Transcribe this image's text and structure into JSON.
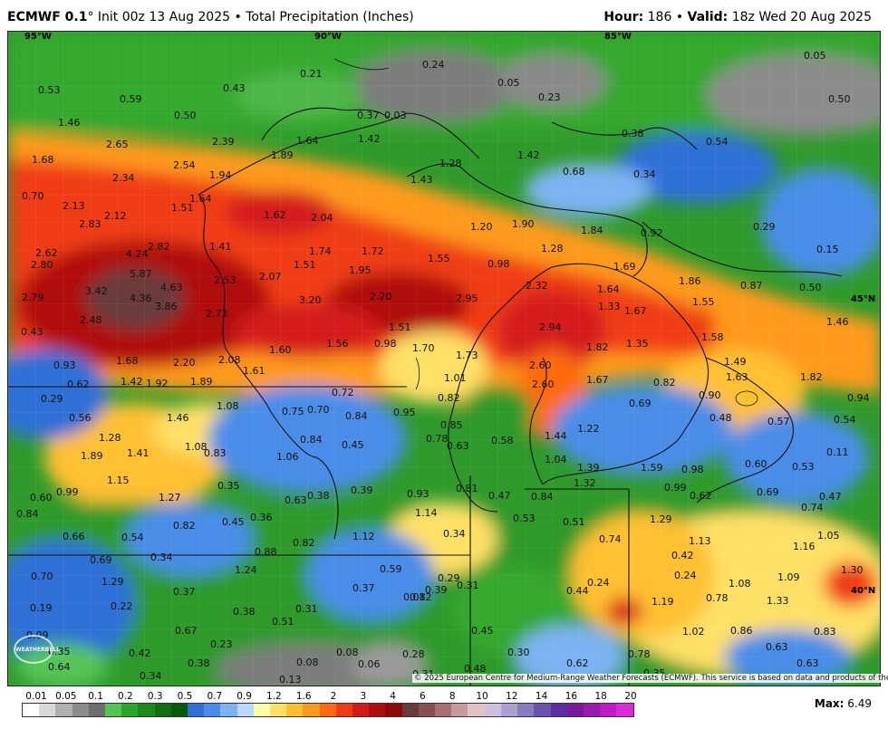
{
  "header": {
    "model": "ECMWF 0.1",
    "deg": "°",
    "init": "Init 00z 13 Aug 2025",
    "bullet": "•",
    "product": "Total Precipitation (Inches)",
    "hour_label": "Hour:",
    "hour_value": "186",
    "valid_label": "Valid:",
    "valid_value": "18z Wed 20 Aug 2025"
  },
  "map": {
    "lon_labels": [
      "95°W",
      "90°W",
      "85°W"
    ],
    "lat_labels": [
      "45°N",
      "40°N"
    ],
    "logo_text": "WEATHERBELL",
    "copyright": "© 2025 European Centre for Medium-Range Weather Forecasts (ECMWF). This service is based on data and products of the ECMWF.",
    "values": [
      {
        "t": "0.53"
      },
      {
        "t": "0.59"
      },
      {
        "t": "0.21"
      },
      {
        "t": "0.43"
      },
      {
        "t": "0.24"
      },
      {
        "t": "0.05"
      },
      {
        "t": "0.23"
      },
      {
        "t": "0.05"
      },
      {
        "t": "0.50"
      },
      {
        "t": "0.50"
      },
      {
        "t": "0.37"
      },
      {
        "t": "0.03"
      },
      {
        "t": "1.46"
      },
      {
        "t": "1.68"
      },
      {
        "t": "2.65"
      },
      {
        "t": "2.39"
      },
      {
        "t": "1.89"
      },
      {
        "t": "1.64"
      },
      {
        "t": "1.42"
      },
      {
        "t": "1.28"
      },
      {
        "t": "1.42"
      },
      {
        "t": "0.38"
      },
      {
        "t": "0.54"
      },
      {
        "t": "0.68"
      },
      {
        "t": "0.34"
      },
      {
        "t": "0.70"
      },
      {
        "t": "2.34"
      },
      {
        "t": "2.54"
      },
      {
        "t": "1.94"
      },
      {
        "t": "1.43"
      },
      {
        "t": "2.13"
      },
      {
        "t": "2.12"
      },
      {
        "t": "1.51"
      },
      {
        "t": "1.64"
      },
      {
        "t": "1.62"
      },
      {
        "t": "2.04"
      },
      {
        "t": "2.83"
      },
      {
        "t": "1.20"
      },
      {
        "t": "1.90"
      },
      {
        "t": "1.84"
      },
      {
        "t": "0.92"
      },
      {
        "t": "0.29"
      },
      {
        "t": "0.15"
      },
      {
        "t": "2.62"
      },
      {
        "t": "4.24"
      },
      {
        "t": "2.82"
      },
      {
        "t": "1.41"
      },
      {
        "t": "1.74"
      },
      {
        "t": "1.72"
      },
      {
        "t": "1.55"
      },
      {
        "t": "1.28"
      },
      {
        "t": "2.80"
      },
      {
        "t": "1.51"
      },
      {
        "t": "1.95"
      },
      {
        "t": "0.98"
      },
      {
        "t": "1.69"
      },
      {
        "t": "5.87"
      },
      {
        "t": "2.53"
      },
      {
        "t": "2.07"
      },
      {
        "t": "1.86"
      },
      {
        "t": "0.87"
      },
      {
        "t": "3.42"
      },
      {
        "t": "4.63"
      },
      {
        "t": "2.32"
      },
      {
        "t": "1.64"
      },
      {
        "t": "0.50"
      },
      {
        "t": "2.79"
      },
      {
        "t": "4.36"
      },
      {
        "t": "3.86"
      },
      {
        "t": "3.20"
      },
      {
        "t": "2.20"
      },
      {
        "t": "2.95"
      },
      {
        "t": "1.33"
      },
      {
        "t": "1.55"
      },
      {
        "t": "2.73"
      },
      {
        "t": "1.67"
      },
      {
        "t": "2.48"
      },
      {
        "t": "1.51"
      },
      {
        "t": "2.94"
      },
      {
        "t": "1.46"
      },
      {
        "t": "0.43"
      },
      {
        "t": "1.56"
      },
      {
        "t": "0.98"
      },
      {
        "t": "1.70"
      },
      {
        "t": "1.35"
      },
      {
        "t": "1.58"
      },
      {
        "t": "1.60"
      },
      {
        "t": "1.82"
      },
      {
        "t": "1.68"
      },
      {
        "t": "1.73"
      },
      {
        "t": "1.49"
      },
      {
        "t": "0.93"
      },
      {
        "t": "2.20"
      },
      {
        "t": "2.08"
      },
      {
        "t": "2.60"
      },
      {
        "t": "1.61"
      },
      {
        "t": "1.01"
      },
      {
        "t": "1.67"
      },
      {
        "t": "1.63"
      },
      {
        "t": "1.82"
      },
      {
        "t": "1.42"
      },
      {
        "t": "1.92"
      },
      {
        "t": "1.89"
      },
      {
        "t": "2.60"
      },
      {
        "t": "0.82"
      },
      {
        "t": "0.62"
      },
      {
        "t": "0.72"
      },
      {
        "t": "0.82"
      },
      {
        "t": "0.90"
      },
      {
        "t": "0.94"
      },
      {
        "t": "0.29"
      },
      {
        "t": "1.08"
      },
      {
        "t": "0.69"
      },
      {
        "t": "0.75"
      },
      {
        "t": "0.70"
      },
      {
        "t": "0.84"
      },
      {
        "t": "0.95"
      },
      {
        "t": "0.48"
      },
      {
        "t": "0.57"
      },
      {
        "t": "0.54"
      },
      {
        "t": "0.56"
      },
      {
        "t": "1.46"
      },
      {
        "t": "0.85"
      },
      {
        "t": "1.22"
      },
      {
        "t": "1.28"
      },
      {
        "t": "1.44"
      },
      {
        "t": "0.78"
      },
      {
        "t": "0.58"
      },
      {
        "t": "0.84"
      },
      {
        "t": "1.08"
      },
      {
        "t": "0.63"
      },
      {
        "t": "0.11"
      },
      {
        "t": "1.89"
      },
      {
        "t": "1.41"
      },
      {
        "t": "0.83"
      },
      {
        "t": "0.45"
      },
      {
        "t": "1.06"
      },
      {
        "t": "1.04"
      },
      {
        "t": "1.39"
      },
      {
        "t": "1.59"
      },
      {
        "t": "0.98"
      },
      {
        "t": "0.60"
      },
      {
        "t": "0.53"
      },
      {
        "t": "1.15"
      },
      {
        "t": "0.35"
      },
      {
        "t": "1.32"
      },
      {
        "t": "0.99"
      },
      {
        "t": "0.99"
      },
      {
        "t": "0.38"
      },
      {
        "t": "0.39"
      },
      {
        "t": "0.81"
      },
      {
        "t": "0.69"
      },
      {
        "t": "0.47"
      },
      {
        "t": "0.60"
      },
      {
        "t": "1.27"
      },
      {
        "t": "0.93"
      },
      {
        "t": "0.47"
      },
      {
        "t": "0.84"
      },
      {
        "t": "0.62"
      },
      {
        "t": "0.74"
      },
      {
        "t": "0.84"
      },
      {
        "t": "0.63"
      },
      {
        "t": "1.14"
      },
      {
        "t": "0.53"
      },
      {
        "t": "0.51"
      },
      {
        "t": "1.29"
      },
      {
        "t": "0.82"
      },
      {
        "t": "0.45"
      },
      {
        "t": "0.36"
      },
      {
        "t": "0.66"
      },
      {
        "t": "0.54"
      },
      {
        "t": "0.82"
      },
      {
        "t": "1.12"
      },
      {
        "t": "0.34"
      },
      {
        "t": "0.74"
      },
      {
        "t": "1.13"
      },
      {
        "t": "1.05"
      },
      {
        "t": "0.88"
      },
      {
        "t": "1.16"
      },
      {
        "t": "0.34"
      },
      {
        "t": "0.69"
      },
      {
        "t": "0.42"
      },
      {
        "t": "1.24"
      },
      {
        "t": "0.70"
      },
      {
        "t": "0.59"
      },
      {
        "t": "0.29"
      },
      {
        "t": "0.24"
      },
      {
        "t": "1.08"
      },
      {
        "t": "1.09"
      },
      {
        "t": "1.30"
      },
      {
        "t": "1.29"
      },
      {
        "t": "0.37"
      },
      {
        "t": "0.37"
      },
      {
        "t": "0.12"
      },
      {
        "t": "0.31"
      },
      {
        "t": "0.24"
      },
      {
        "t": "0.44"
      },
      {
        "t": "0.39"
      },
      {
        "t": "0.78"
      },
      {
        "t": "1.33"
      },
      {
        "t": "0.22"
      },
      {
        "t": "0.08"
      },
      {
        "t": "0.19"
      },
      {
        "t": "0.38"
      },
      {
        "t": "0.31"
      },
      {
        "t": "1.19"
      },
      {
        "t": "0.51"
      },
      {
        "t": "0.67"
      },
      {
        "t": "0.45"
      },
      {
        "t": "1.02"
      },
      {
        "t": "0.86"
      },
      {
        "t": "0.83"
      },
      {
        "t": "0.09"
      },
      {
        "t": "0.23"
      },
      {
        "t": "0.63"
      },
      {
        "t": "0.35"
      },
      {
        "t": "0.42"
      },
      {
        "t": "0.08"
      },
      {
        "t": "0.28"
      },
      {
        "t": "0.30"
      },
      {
        "t": "0.62"
      },
      {
        "t": "0.78"
      },
      {
        "t": "0.63"
      },
      {
        "t": "0.64"
      },
      {
        "t": "0.38"
      },
      {
        "t": "0.08"
      },
      {
        "t": "0.06"
      },
      {
        "t": "0.31"
      },
      {
        "t": "0.48"
      },
      {
        "t": "0.35"
      },
      {
        "t": "0.34"
      },
      {
        "t": "0.13"
      }
    ]
  },
  "legend": {
    "ticks": [
      "0.01",
      "0.05",
      "0.1",
      "0.2",
      "0.3",
      "0.5",
      "0.7",
      "0.9",
      "1.2",
      "1.6",
      "2",
      "3",
      "4",
      "6",
      "8",
      "10",
      "12",
      "14",
      "16",
      "18",
      "20"
    ],
    "colors": [
      "#ffffff",
      "#d9d9d9",
      "#b0b0b0",
      "#8c8c8c",
      "#6e6e6e",
      "#55c455",
      "#27a827",
      "#1c8a1c",
      "#136e13",
      "#0a5a0a",
      "#2f6fd6",
      "#4a8de8",
      "#7db3f2",
      "#b7d9ff",
      "#ffffa8",
      "#ffe066",
      "#ffc030",
      "#ff9a1a",
      "#ff6a10",
      "#f03c14",
      "#d41a1a",
      "#b00e0e",
      "#8c0a0a",
      "#6a3a3a",
      "#8a5050",
      "#a87070",
      "#c49a9a",
      "#e0c4c4",
      "#cdc0e0",
      "#ac9ed0",
      "#8a7ac0",
      "#6a52b0",
      "#5a2ea0",
      "#7a1a9a",
      "#9a1ab0",
      "#c01ac8",
      "#dc2ad8"
    ],
    "max_label": "Max:",
    "max_value": "6.49"
  }
}
